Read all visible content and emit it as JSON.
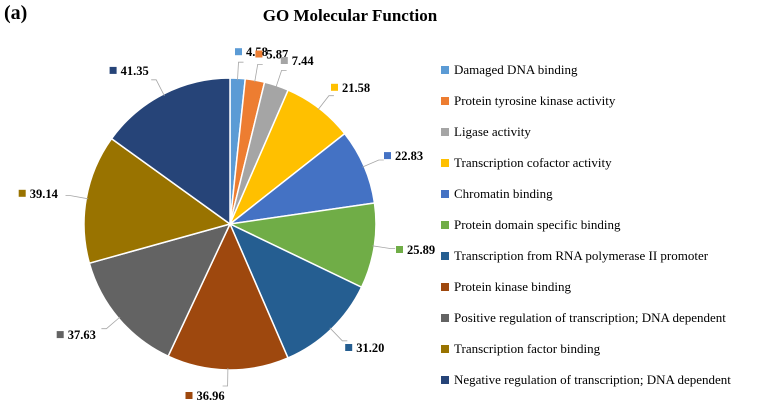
{
  "panel_label": "(a)",
  "chart_data": {
    "type": "pie",
    "title": "GO Molecular Function",
    "categories": [
      "Damaged DNA binding",
      "Protein tyrosine kinase activity",
      "Ligase activity",
      "Transcription cofactor activity",
      "Chromatin binding",
      "Protein domain specific binding",
      "Transcription from RNA polymerase II promoter",
      "Protein kinase binding",
      "Positive regulation of transcription; DNA dependent",
      "Transcription factor binding",
      "Negative regulation of transcription; DNA dependent"
    ],
    "values": [
      4.58,
      5.87,
      7.44,
      21.58,
      22.83,
      25.89,
      31.2,
      36.96,
      37.63,
      39.14,
      41.35
    ],
    "value_labels": [
      "4.58",
      "5.87",
      "7.44",
      "21.58",
      "22.83",
      "25.89",
      "31.20",
      "36.96",
      "37.63",
      "39.14",
      "41.35"
    ],
    "colors": [
      "#5B9BD5",
      "#ED7D31",
      "#A5A5A5",
      "#FFC000",
      "#4472C4",
      "#70AD47",
      "#255E91",
      "#9E480E",
      "#636363",
      "#997300",
      "#264478"
    ],
    "legend_position": "right",
    "start_angle": "12 o'clock, clockwise"
  }
}
